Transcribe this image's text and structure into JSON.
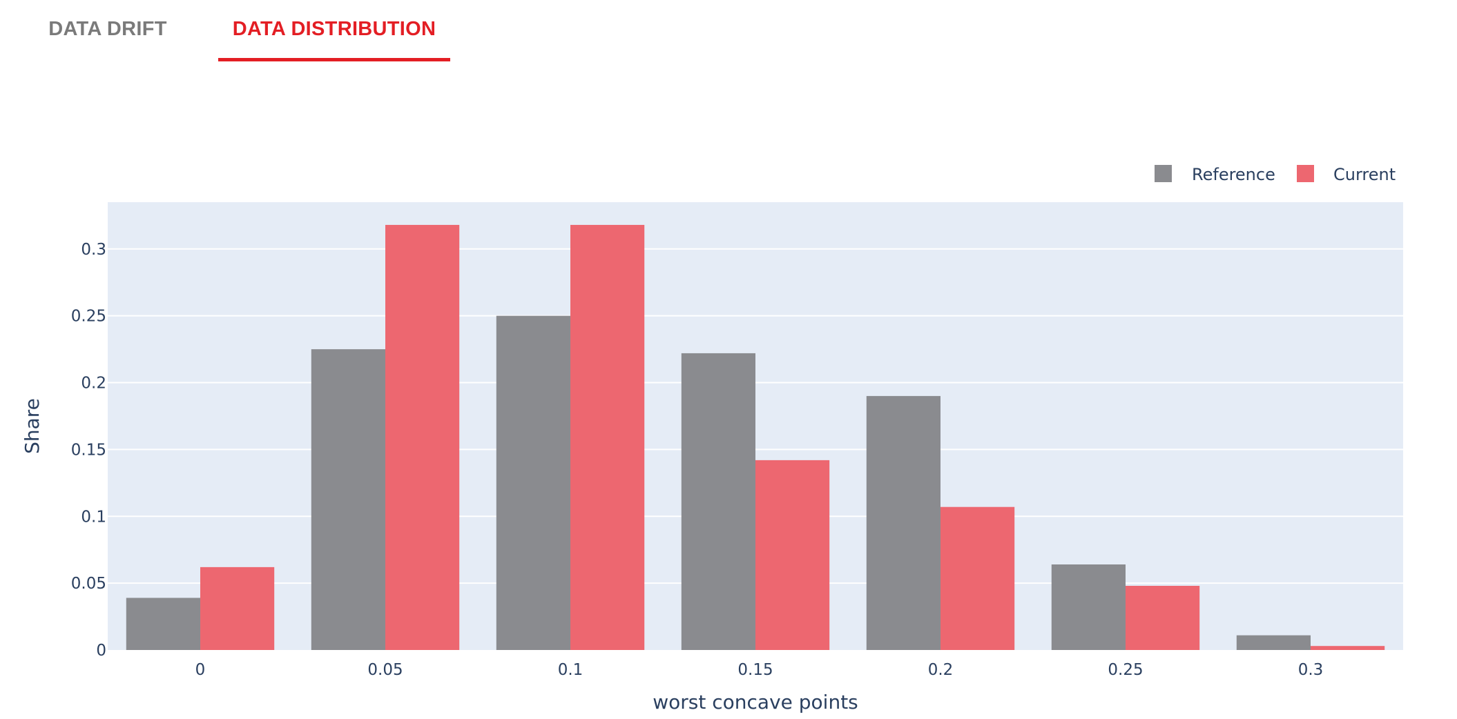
{
  "tabs": [
    {
      "label": "DATA DRIFT",
      "active": false
    },
    {
      "label": "DATA DISTRIBUTION",
      "active": true
    }
  ],
  "colors": {
    "accent": "#e31e24",
    "inactive_tab": "#7a7a7a",
    "plot_bg": "#e5ecf6",
    "reference": "#8a8b8f",
    "current": "#ed6770",
    "text": "#2a3f5f"
  },
  "chart_data": {
    "type": "bar",
    "title": "",
    "xlabel": "worst concave points",
    "ylabel": "Share",
    "categories": [
      0,
      0.05,
      0.1,
      0.15,
      0.2,
      0.25,
      0.3
    ],
    "x_tick_labels": [
      "0",
      "0.05",
      "0.1",
      "0.15",
      "0.2",
      "0.25",
      "0.3"
    ],
    "ylim": [
      0,
      0.335
    ],
    "y_ticks": [
      0,
      0.05,
      0.1,
      0.15,
      0.2,
      0.25,
      0.3
    ],
    "y_tick_labels": [
      "0",
      "0.05",
      "0.1",
      "0.15",
      "0.2",
      "0.25",
      "0.3"
    ],
    "grid": true,
    "legend_position": "top-right",
    "series": [
      {
        "name": "Reference",
        "values": [
          0.039,
          0.225,
          0.25,
          0.222,
          0.19,
          0.064,
          0.011
        ]
      },
      {
        "name": "Current",
        "values": [
          0.062,
          0.318,
          0.318,
          0.142,
          0.107,
          0.048,
          0.003
        ]
      }
    ]
  }
}
